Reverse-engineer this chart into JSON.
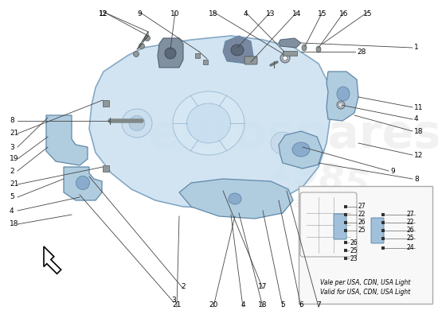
{
  "bg_color": "#ffffff",
  "gearbox_fill": "#c8dff0",
  "gearbox_edge": "#7099bb",
  "part_fill": "#b0ccdf",
  "part_edge": "#6088a8",
  "dark_fill": "#7090a8",
  "inset_bg": "#f8f8f8",
  "inset_edge": "#aaaaaa",
  "watermark_color": "#e8e8e8",
  "line_color": "#444444",
  "label_fontsize": 6.5,
  "small_fontsize": 5.5,
  "inset_text1": "Vale per USA, CDN, USA Light",
  "inset_text2": "Valid for USA, CDN, USA Light"
}
